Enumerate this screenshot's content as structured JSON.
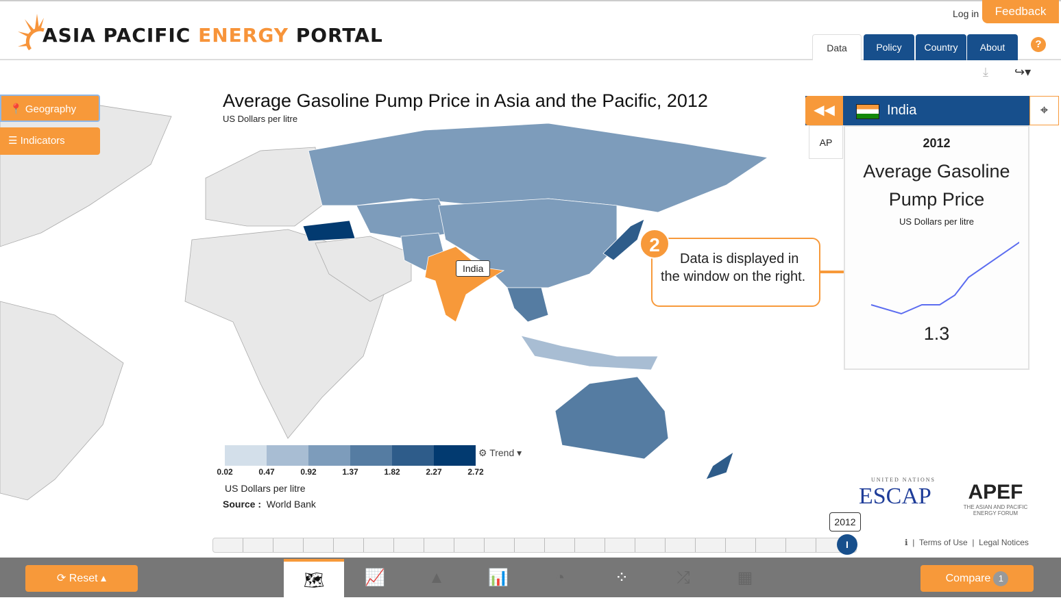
{
  "header": {
    "logo_part1": "ASIA PACIFIC ",
    "logo_part2": "ENERGY",
    "logo_part3": " PORTAL",
    "login": "Log in",
    "feedback": "Feedback",
    "tabs": [
      {
        "label": "Data"
      },
      {
        "label": "Policy"
      },
      {
        "label": "Country"
      },
      {
        "label": "About"
      }
    ],
    "help": "?"
  },
  "sidebar": {
    "geography": "Geography",
    "indicators": "Indicators"
  },
  "map": {
    "title": "Average Gasoline Pump Price in Asia and the Pacific, 2012",
    "subtitle": "US Dollars per litre",
    "selected_label": "India",
    "highlight_color": "#f7993a",
    "legend": {
      "colors": [
        "#d3dfea",
        "#a8bdd3",
        "#7d9cbb",
        "#557ca2",
        "#2e5c8a",
        "#023a70"
      ],
      "ticks": [
        "0.02",
        "0.47",
        "0.92",
        "1.37",
        "1.82",
        "2.27",
        "2.72"
      ],
      "trend": "Trend",
      "unit": "US Dollars per litre",
      "source_label": "Source :",
      "source": "World Bank"
    }
  },
  "callout": {
    "number": "2",
    "text": "Data is displayed in the window on the right."
  },
  "panel": {
    "country": "India",
    "ap_tab": "AP",
    "year": "2012",
    "indicator": "Average Gasoline Pump Price",
    "unit": "US Dollars per litre",
    "value": "1.3"
  },
  "timeline": {
    "year": "2012"
  },
  "footer": {
    "terms": "Terms of Use",
    "legal": "Legal Notices",
    "escap_top": "UNITED NATIONS",
    "escap": "ESCAP",
    "apef": "APEF",
    "apef_sub": "THE ASIAN AND PACIFIC ENERGY FORUM"
  },
  "bottom": {
    "reset": "Reset",
    "compare": "Compare",
    "compare_count": "1"
  }
}
